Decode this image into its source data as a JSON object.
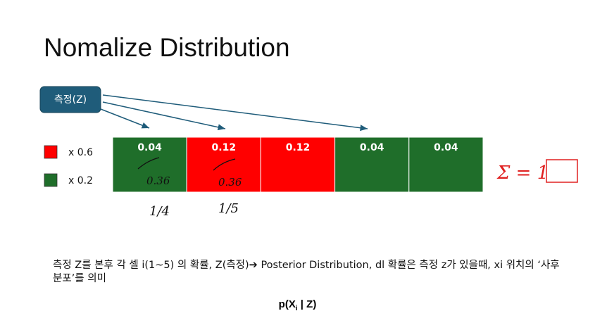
{
  "title": "Nomalize Distribution",
  "measure_button": "측정(Z)",
  "cells": [
    {
      "value": "0.04",
      "color": "#1f6e2a"
    },
    {
      "value": "0.12",
      "color": "#ff0000"
    },
    {
      "value": "0.12",
      "color": "#ff0000"
    },
    {
      "value": "0.04",
      "color": "#1f6e2a"
    },
    {
      "value": "0.04",
      "color": "#1f6e2a"
    }
  ],
  "legend": [
    {
      "label": "x 0.6",
      "color": "#ff0000"
    },
    {
      "label": "x 0.2",
      "color": "#1f6e2a"
    }
  ],
  "handwriting": {
    "cell_notes": [
      "0.36",
      "0.36"
    ],
    "below_notes": [
      "1/4",
      "1/5"
    ],
    "sum_note": "Σ = 1"
  },
  "body_text": "측정 Z를 본후 각 셀 i(1~5) 의 확률, Z(측정)➔ Posterior Distribution, dl 확률은 측정 z가 있을때, xi 위치의 ‘사후 분포’를 의미",
  "formula": {
    "prefix": "p(X",
    "subscript": "i",
    "suffix": " | Z)"
  }
}
